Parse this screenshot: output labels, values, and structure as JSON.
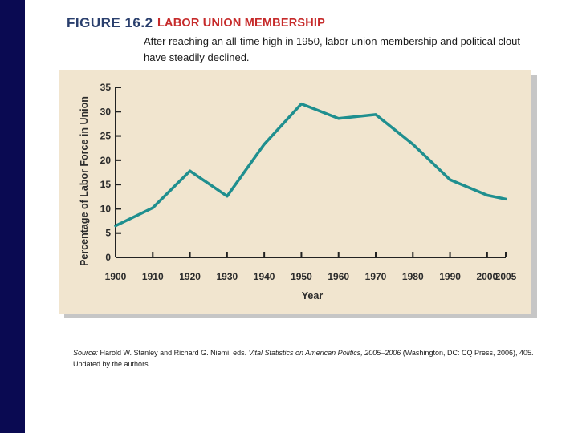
{
  "figure": {
    "label": "FIGURE 16.2",
    "title": "LABOR UNION MEMBERSHIP",
    "subtitle": "After reaching an all-time high in 1950, labor union membership and political clout have steadily declined."
  },
  "source": {
    "label": "Source:",
    "authors": "Harold W. Stanley and Richard G. Niemi, eds.",
    "work": "Vital Statistics on American Politics, 2005–2006",
    "rest": "(Washington, DC: CQ Press, 2006), 405. Updated by the authors."
  },
  "colors": {
    "line": "#1f8f8f",
    "panel": "#f1e5cf",
    "figure_label": "#2a3f6d",
    "title": "#c62a2a",
    "sidebar": "#0a0a52"
  },
  "chart_data": {
    "type": "line",
    "xlabel": "Year",
    "ylabel": "Percentage of Labor Force in Union",
    "xlim": [
      1900,
      2005
    ],
    "ylim": [
      0,
      35
    ],
    "x_ticks": [
      "1900",
      "1910",
      "1920",
      "1930",
      "1940",
      "1950",
      "1960",
      "1970",
      "1980",
      "1990",
      "2000",
      "2005"
    ],
    "y_ticks": [
      "0",
      "5",
      "10",
      "15",
      "20",
      "25",
      "30",
      "35"
    ],
    "grid": false,
    "legend": "none",
    "x": [
      1900,
      1910,
      1920,
      1930,
      1940,
      1950,
      1960,
      1970,
      1980,
      1990,
      2000,
      2005
    ],
    "values": [
      6.5,
      10.2,
      17.8,
      12.6,
      23.3,
      31.6,
      28.6,
      29.4,
      23.3,
      16.0,
      12.8,
      12.0
    ]
  }
}
